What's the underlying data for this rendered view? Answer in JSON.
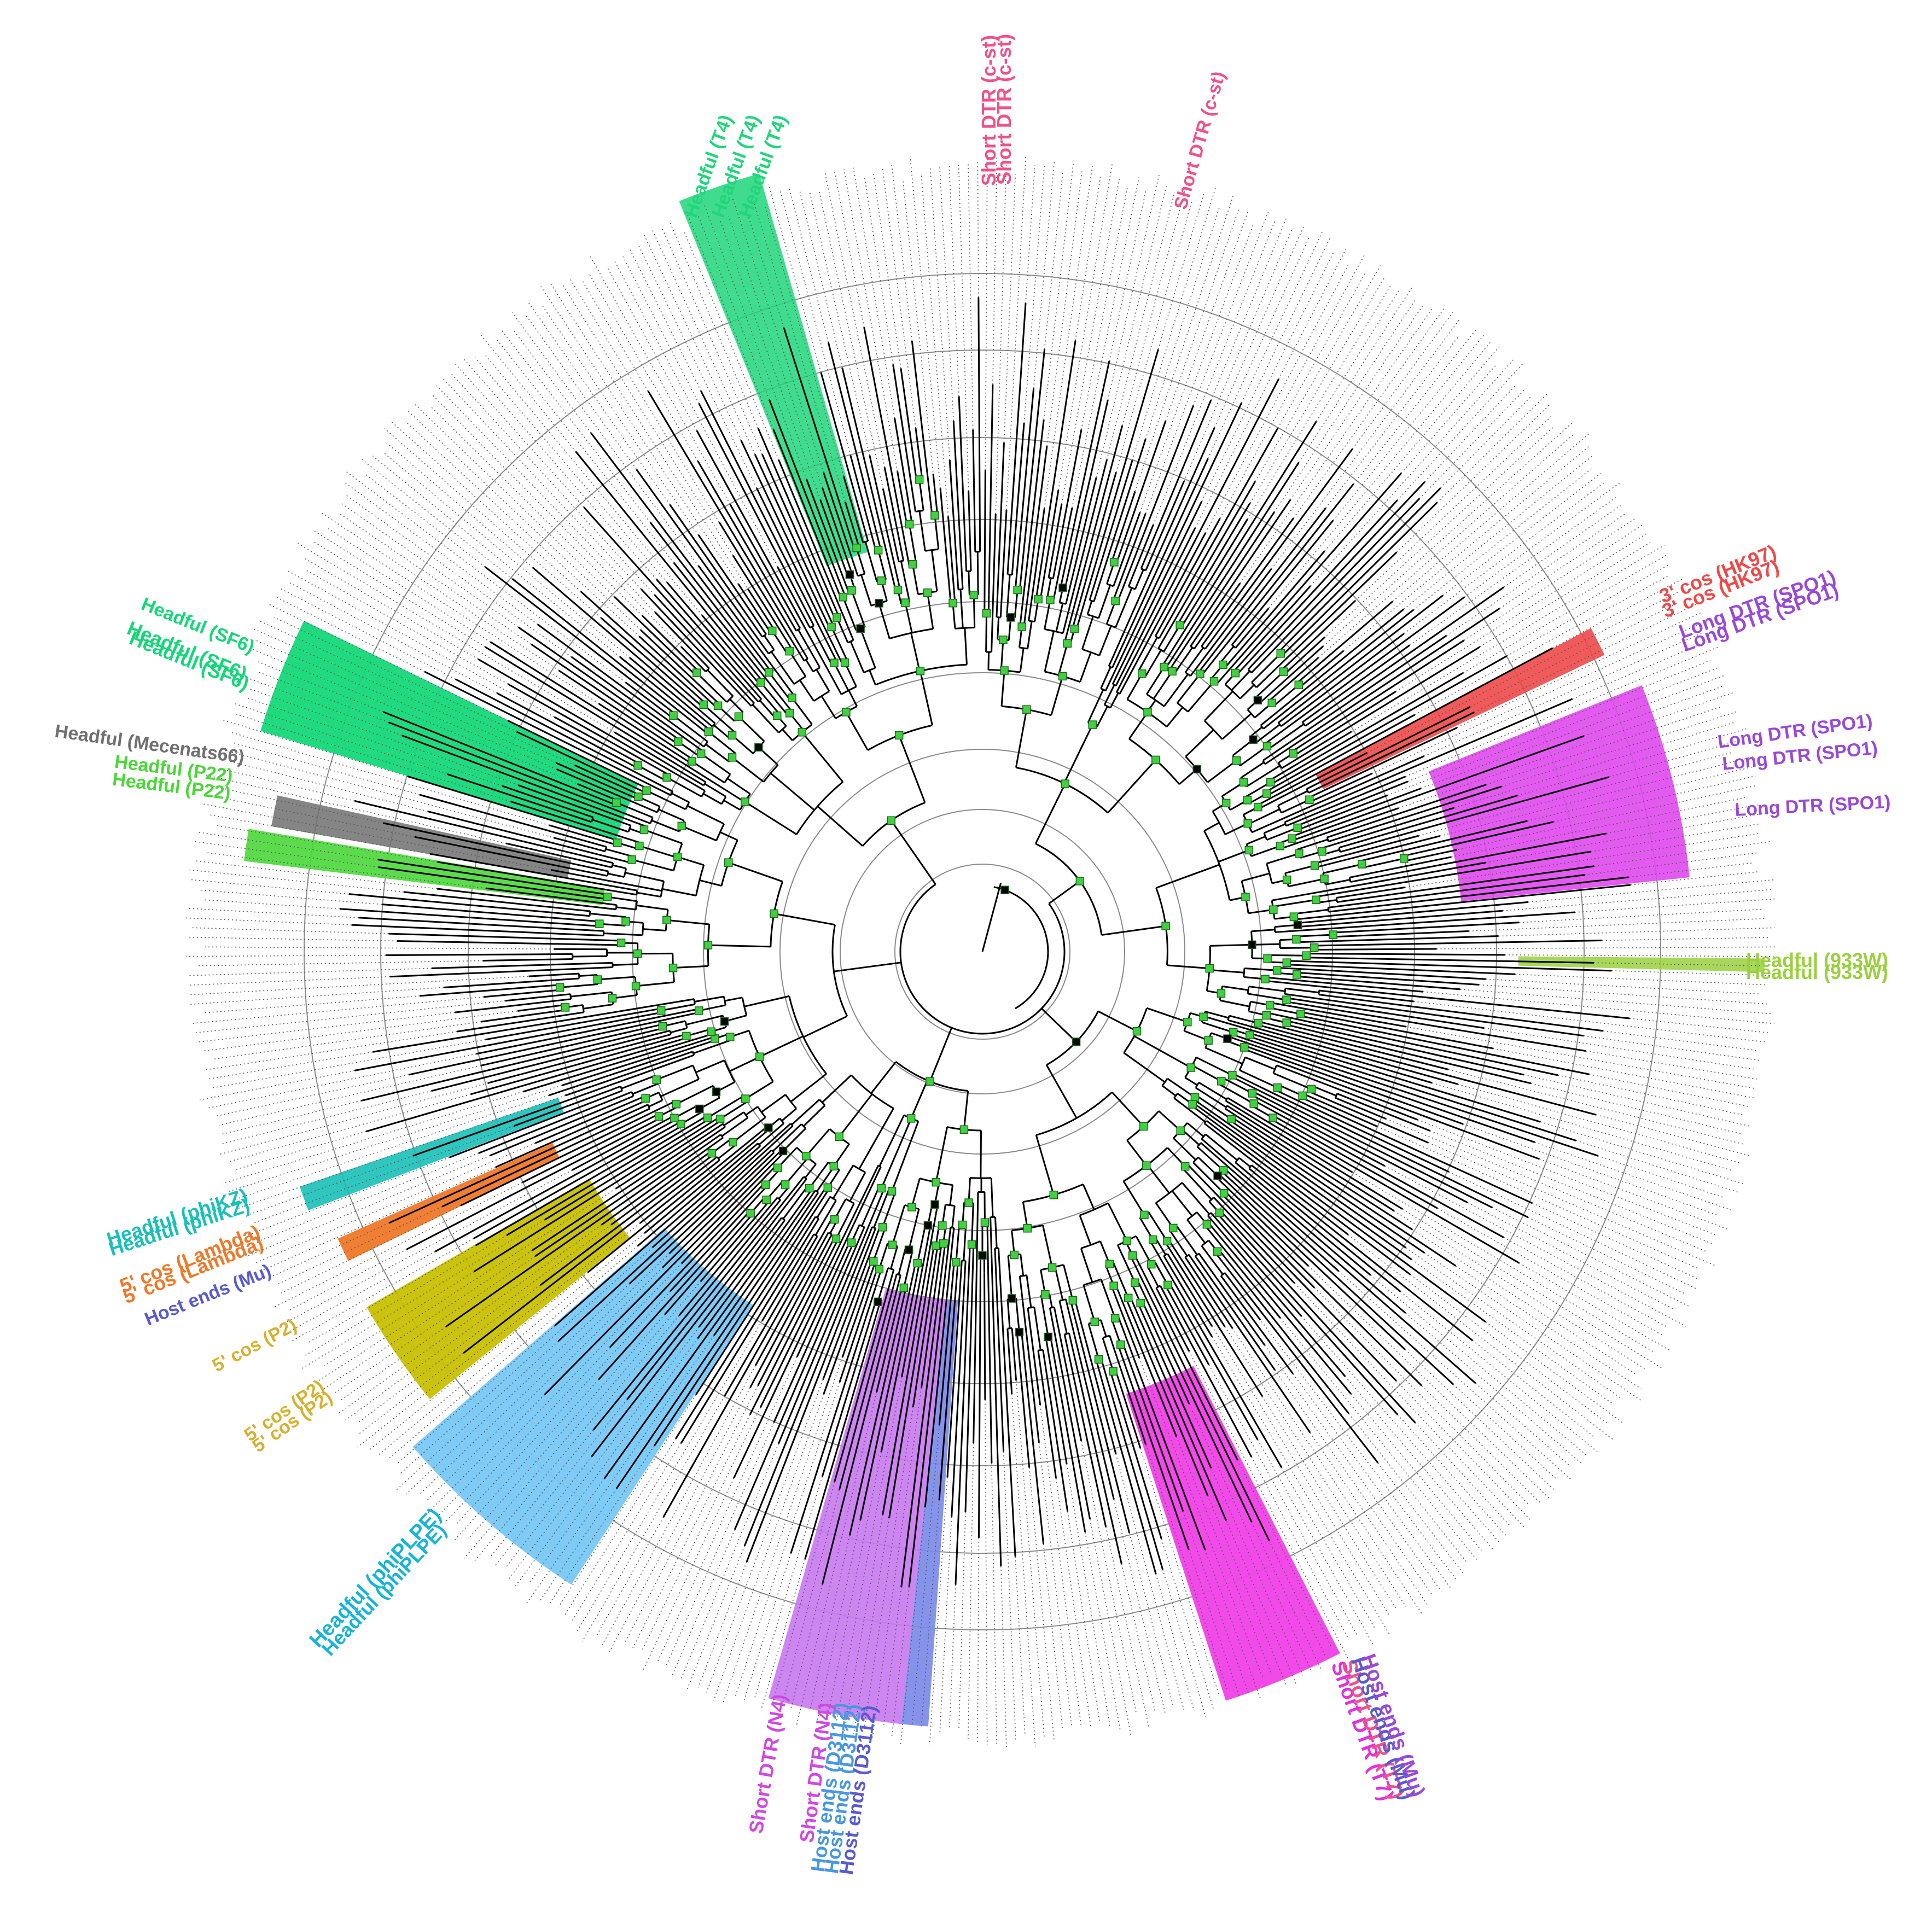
{
  "colors": {
    "T4": "#1fd67a",
    "c_st": "#f0508c",
    "HK97": "#f04848",
    "SPO1": "#9a48d8",
    "SPO1_band": "#e048f0",
    "W933": "#9ad040",
    "SF6": "#14d878",
    "Mecenats66": "#707070",
    "P22": "#4ad838",
    "phiKZ": "#18c0b8",
    "Lambda": "#f07828",
    "Mu": "#5a5ad0",
    "P2": "#d8b030",
    "P2_band": "#c8c000",
    "phiPLPE": "#18b4d8",
    "phiPLPE_band": "#78c8f8",
    "N4": "#d048e0",
    "N4_band": "#c878f0",
    "D3112": "#4898e0",
    "D3112_band": "#7888e8",
    "T7": "#e030e0",
    "T7_band": "#f040e8",
    "node_marker": "#40d040"
  },
  "labels": {
    "t4": [
      "Headful (T4)",
      "Headful (T4)",
      "Headful (T4)"
    ],
    "cst_a": [
      "Short DTR (c-st)",
      "Short DTR (c-st)"
    ],
    "cst_b": "Short DTR (c-st)",
    "hk97": [
      "3' cos (HK97)",
      "3' cos (HK97)"
    ],
    "spo1_top": [
      "Long DTR (SPO1)",
      "Long DTR (SPO1)"
    ],
    "spo1": [
      "Long DTR (SPO1)",
      "Long DTR (SPO1)",
      "Long DTR (SPO1)"
    ],
    "w933": [
      "Headful (933W)",
      "Headful (933W)"
    ],
    "sf6": [
      "Headful (SF6)",
      "Headful (SF6)",
      "Headful (SF6)"
    ],
    "mecenats": "Headful (Mecenats66)",
    "p22": [
      "Headful (P22)",
      "Headful (P22)"
    ],
    "phikz": [
      "Headful (phiKZ)",
      "Headful (phiKZ)"
    ],
    "lambda": [
      "5' cos (Lambda)",
      "5' cos (Lambda)"
    ],
    "mu": "Host ends (Mu)",
    "p2_a": "5' cos (P2)",
    "p2_b": [
      "5' cos (P2)",
      "5' cos (P2)"
    ],
    "phiplpe": [
      "Headful (phiPLPE)",
      "Headful (phiPLPE)"
    ],
    "n4": "Short DTR (N4)",
    "n4_b": "Short DTR (N4)",
    "d3112": [
      "Host ends (D3112)",
      "Host ends (D3112)",
      "Host ends (D3112)"
    ],
    "t7": [
      "Short DTR (T7)",
      "Short DTR (T7)"
    ],
    "mu_b": [
      "Host ends (Mu)",
      "Host ends (Mu)"
    ]
  }
}
